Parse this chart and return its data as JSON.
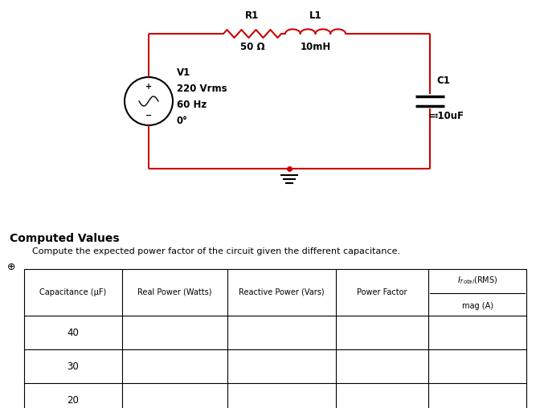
{
  "bg_color": "#ffffff",
  "circuit_color": "#cc0000",
  "text_color": "#000000",
  "title": "Computed Values",
  "subtitle": "Compute the expected power factor of the circuit given the different capacitance.",
  "table_headers_main": [
    "Capacitance (μF)",
    "Real Power (Watts)",
    "Reactive Power (Vars)",
    "Power Factor"
  ],
  "table_header_last_top": "I",
  "table_header_last_sub": "Total",
  "table_header_last_rms": "(RMS)",
  "table_header_last_bot": "mag (A)",
  "table_rows": [
    "40",
    "30",
    "20"
  ],
  "r1_label": "R1",
  "r1_value": "50 Ω",
  "l1_label": "L1",
  "l1_value": "10mH",
  "v1_label": "V1",
  "v1_line1": "220 Vrms",
  "v1_line2": "60 Hz",
  "v1_line3": "0°",
  "c1_label": "C1",
  "c1_value": "≕10uF",
  "circuit_lw": 1.5,
  "cap_plate_lw": 2.5,
  "vsrc_lw": 1.5
}
